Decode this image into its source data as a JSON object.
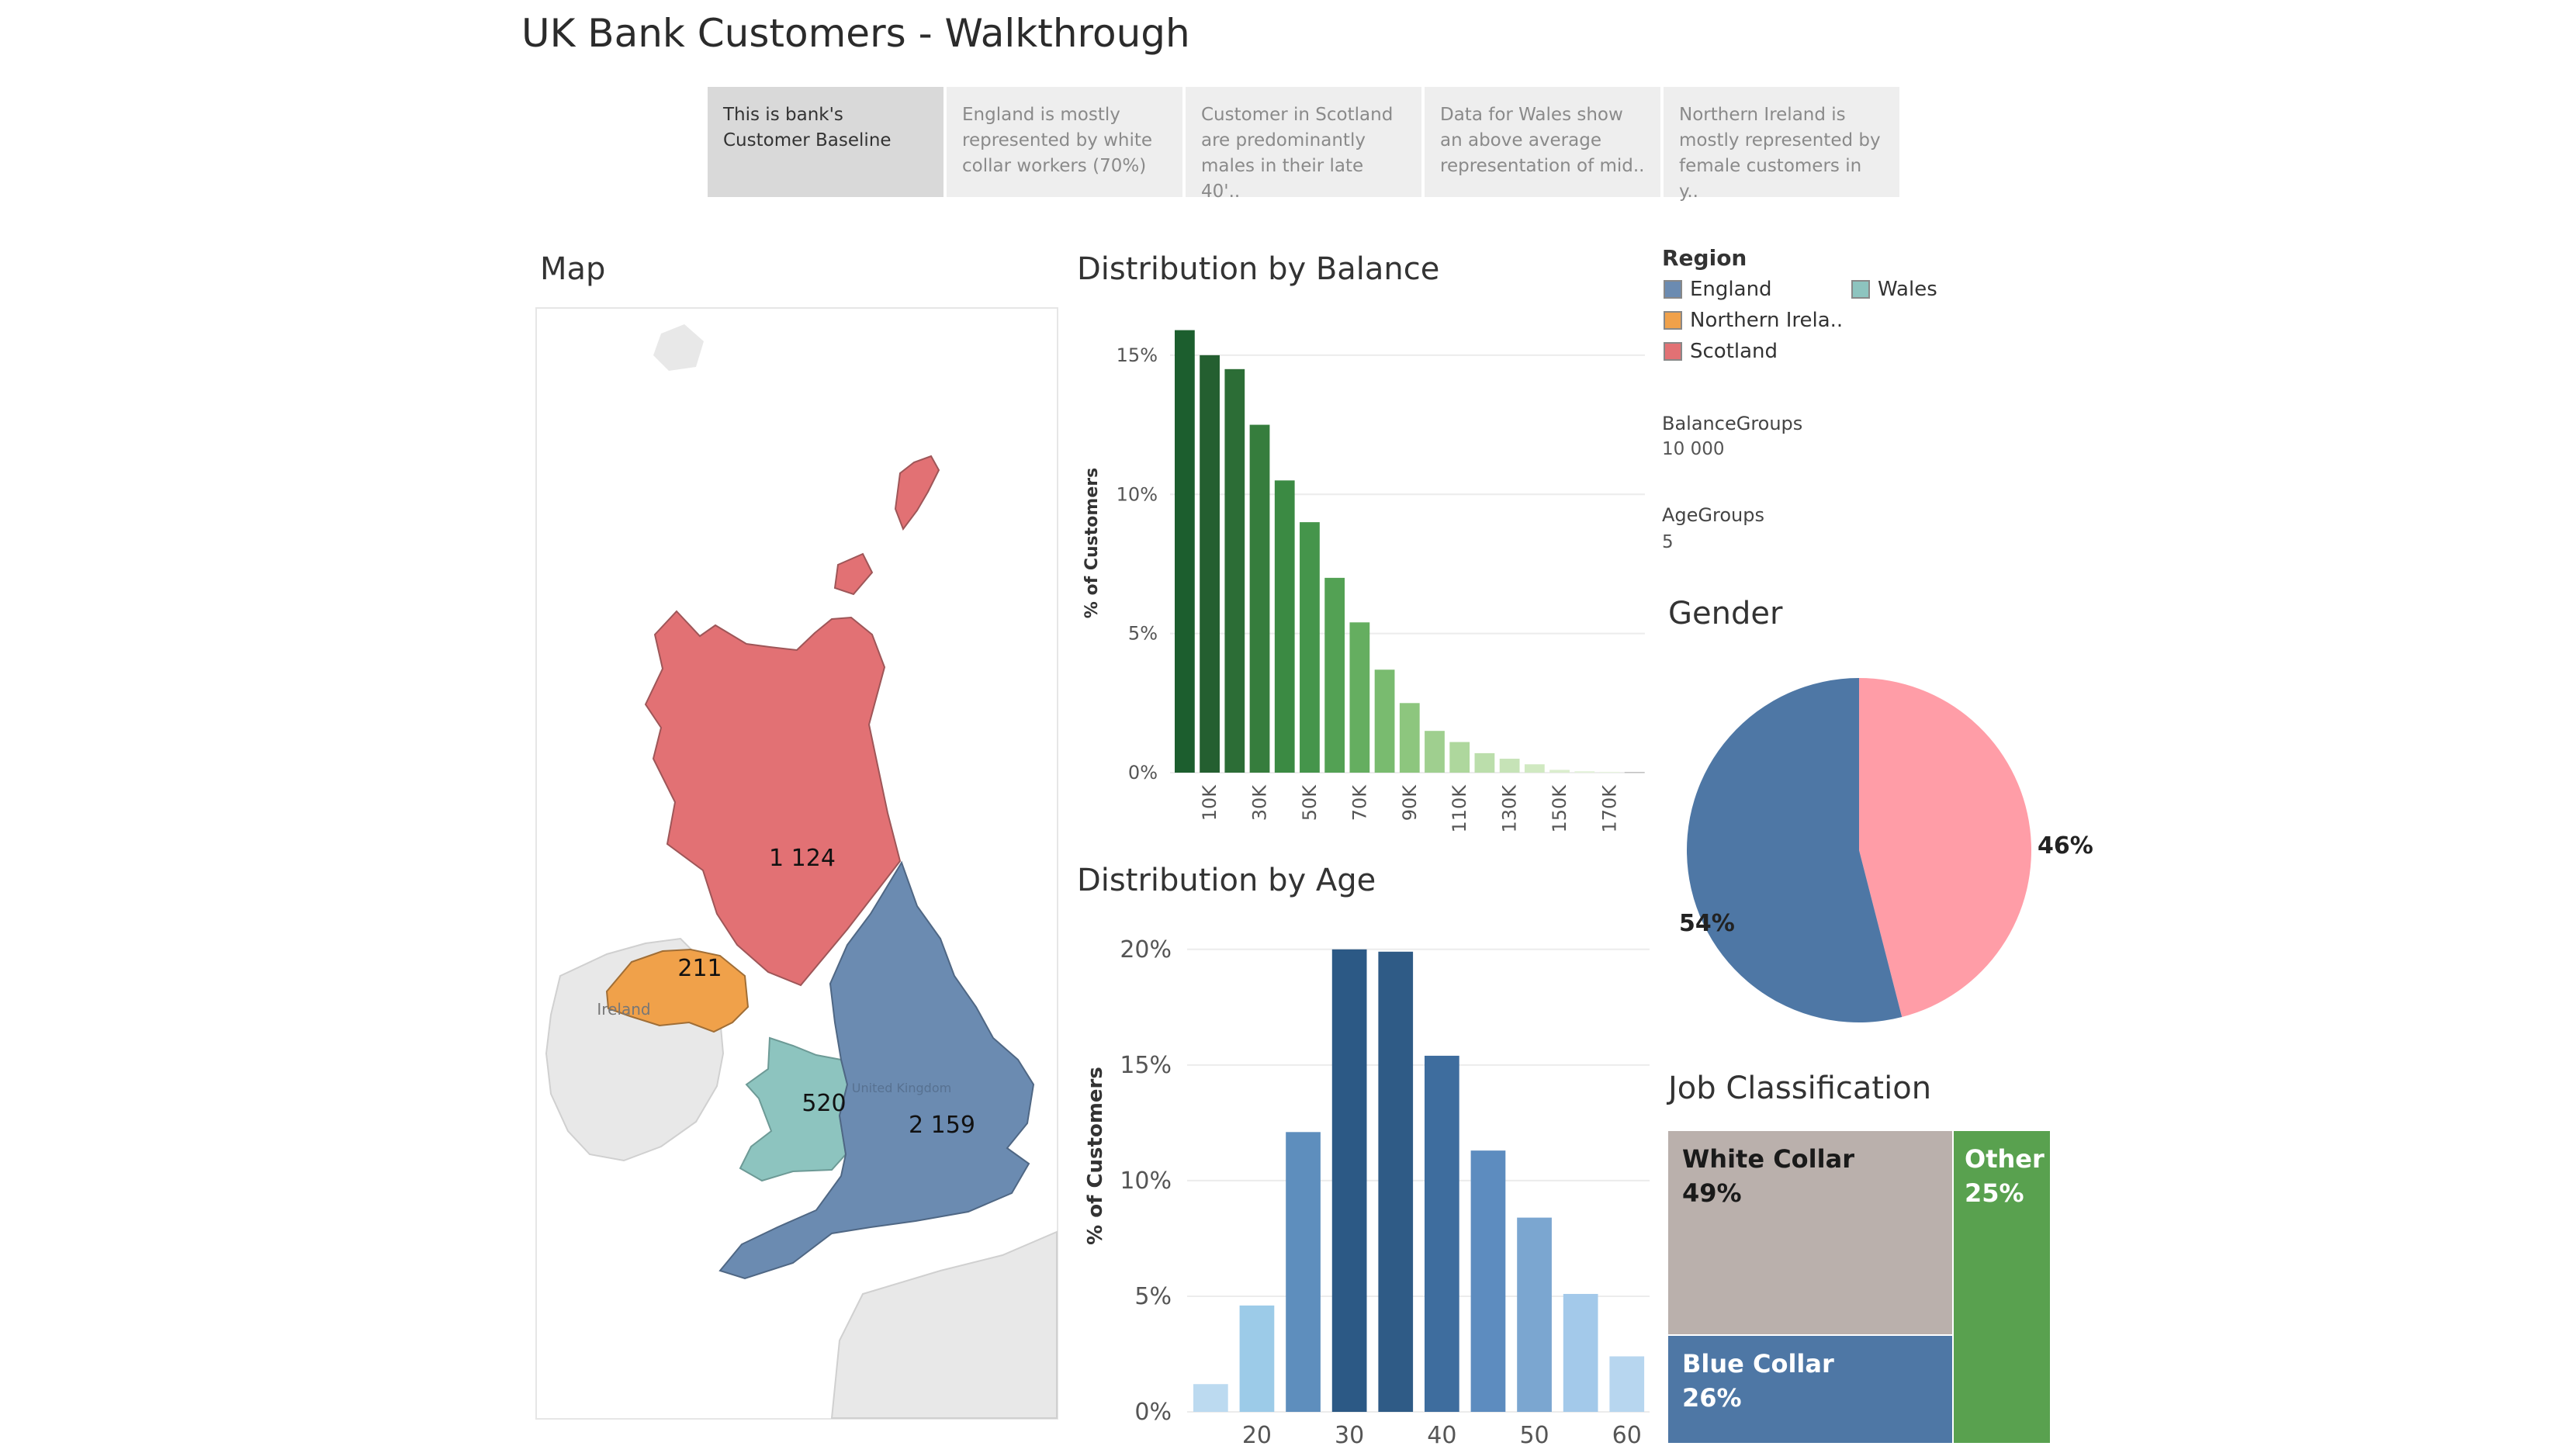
{
  "title": "UK Bank Customers - Walkthrough",
  "story": [
    {
      "text": "This is bank's Customer Baseline",
      "active": true
    },
    {
      "text": "England is mostly represented by white collar workers (70%)",
      "active": false
    },
    {
      "text": "Customer in Scotland are predominantly males in their late 40'..",
      "active": false
    },
    {
      "text": "Data for Wales show an above average representation of mid..",
      "active": false
    },
    {
      "text": "Northern Ireland is mostly represented by female customers in y..",
      "active": false
    }
  ],
  "map": {
    "title": "Map",
    "labels": {
      "scotland": "1 124",
      "northern_ireland": "211",
      "wales": "520",
      "england": "2 159",
      "ireland": "Ireland",
      "uk": "United Kingdom"
    },
    "colors": {
      "england": "#6b8bb1",
      "northern_ireland": "#f0a14a",
      "scotland": "#e27174",
      "wales": "#8dc4bf",
      "other": "#e8e8e8"
    }
  },
  "legend": {
    "title": "Region",
    "items": [
      {
        "label": "England",
        "color": "#6b8bb1"
      },
      {
        "label": "Wales",
        "color": "#8dc4bf"
      },
      {
        "label": "Northern Irela..",
        "color": "#f0a14a"
      },
      {
        "label": "Scotland",
        "color": "#e27174"
      }
    ]
  },
  "params": {
    "balance_label": "BalanceGroups",
    "balance_value": "10 000",
    "age_label": "AgeGroups",
    "age_value": "5"
  },
  "chart_data": [
    {
      "type": "bar",
      "title": "Distribution by Balance",
      "ylabel": "% of Customers",
      "xlabel": "",
      "ylim": [
        0,
        16
      ],
      "yticks": [
        "0%",
        "5%",
        "10%",
        "15%"
      ],
      "xtick_labels": [
        "10K",
        "30K",
        "50K",
        "70K",
        "90K",
        "110K",
        "130K",
        "150K",
        "170K"
      ],
      "categories": [
        "0K",
        "10K",
        "20K",
        "30K",
        "40K",
        "50K",
        "60K",
        "70K",
        "80K",
        "90K",
        "100K",
        "110K",
        "120K",
        "130K",
        "140K",
        "150K",
        "160K",
        "170K",
        "180K"
      ],
      "values": [
        15.9,
        15.0,
        14.5,
        12.5,
        10.5,
        9.0,
        7.0,
        5.4,
        3.7,
        2.5,
        1.5,
        1.1,
        0.7,
        0.5,
        0.3,
        0.1,
        0.05,
        0.03,
        0.02
      ],
      "colors": [
        "#1c5e2e",
        "#245f30",
        "#2c6d36",
        "#367d3d",
        "#3b8a43",
        "#45954b",
        "#53a154",
        "#65ae60",
        "#79bb6f",
        "#8dc67e",
        "#9fcf8f",
        "#aed79d",
        "#bbdeab",
        "#c6e3b7",
        "#d0e9c1",
        "#daedcd",
        "#e2f2d8",
        "#e8f5df",
        "#b0b0b0"
      ]
    },
    {
      "type": "bar",
      "title": "Distribution by Age",
      "ylabel": "% of Customers",
      "xlabel": "",
      "ylim": [
        0,
        21
      ],
      "yticks": [
        "0%",
        "5%",
        "10%",
        "15%",
        "20%"
      ],
      "xtick_labels": [
        "20",
        "30",
        "40",
        "50",
        "60"
      ],
      "categories": [
        15,
        20,
        25,
        30,
        35,
        40,
        45,
        50,
        55,
        60
      ],
      "values": [
        1.2,
        4.6,
        12.1,
        20.0,
        19.9,
        15.4,
        11.3,
        8.4,
        5.1,
        2.4
      ],
      "colors": [
        "#bcdaf0",
        "#9ccbe8",
        "#5e8ebd",
        "#2c5985",
        "#2f5b86",
        "#3e6d9e",
        "#5d8cbf",
        "#7ba6d0",
        "#a3c9ea",
        "#b7d6ef"
      ]
    },
    {
      "type": "pie",
      "title": "Gender",
      "slices": [
        {
          "label": "54%",
          "value": 54,
          "color": "#4e77a5"
        },
        {
          "label": "46%",
          "value": 46,
          "color": "#ff9da7"
        }
      ]
    },
    {
      "type": "treemap",
      "title": "Job Classification",
      "cells": [
        {
          "name": "White Collar",
          "pct": "49%",
          "value": 49,
          "color": "#bab0ac",
          "text_color": "#1a1a1a"
        },
        {
          "name": "Blue Collar",
          "pct": "26%",
          "value": 26,
          "color": "#4e77a5",
          "text_color": "#ffffff"
        },
        {
          "name": "Other",
          "pct": "25%",
          "value": 25,
          "color": "#59a14f",
          "text_color": "#ffffff"
        }
      ]
    }
  ]
}
